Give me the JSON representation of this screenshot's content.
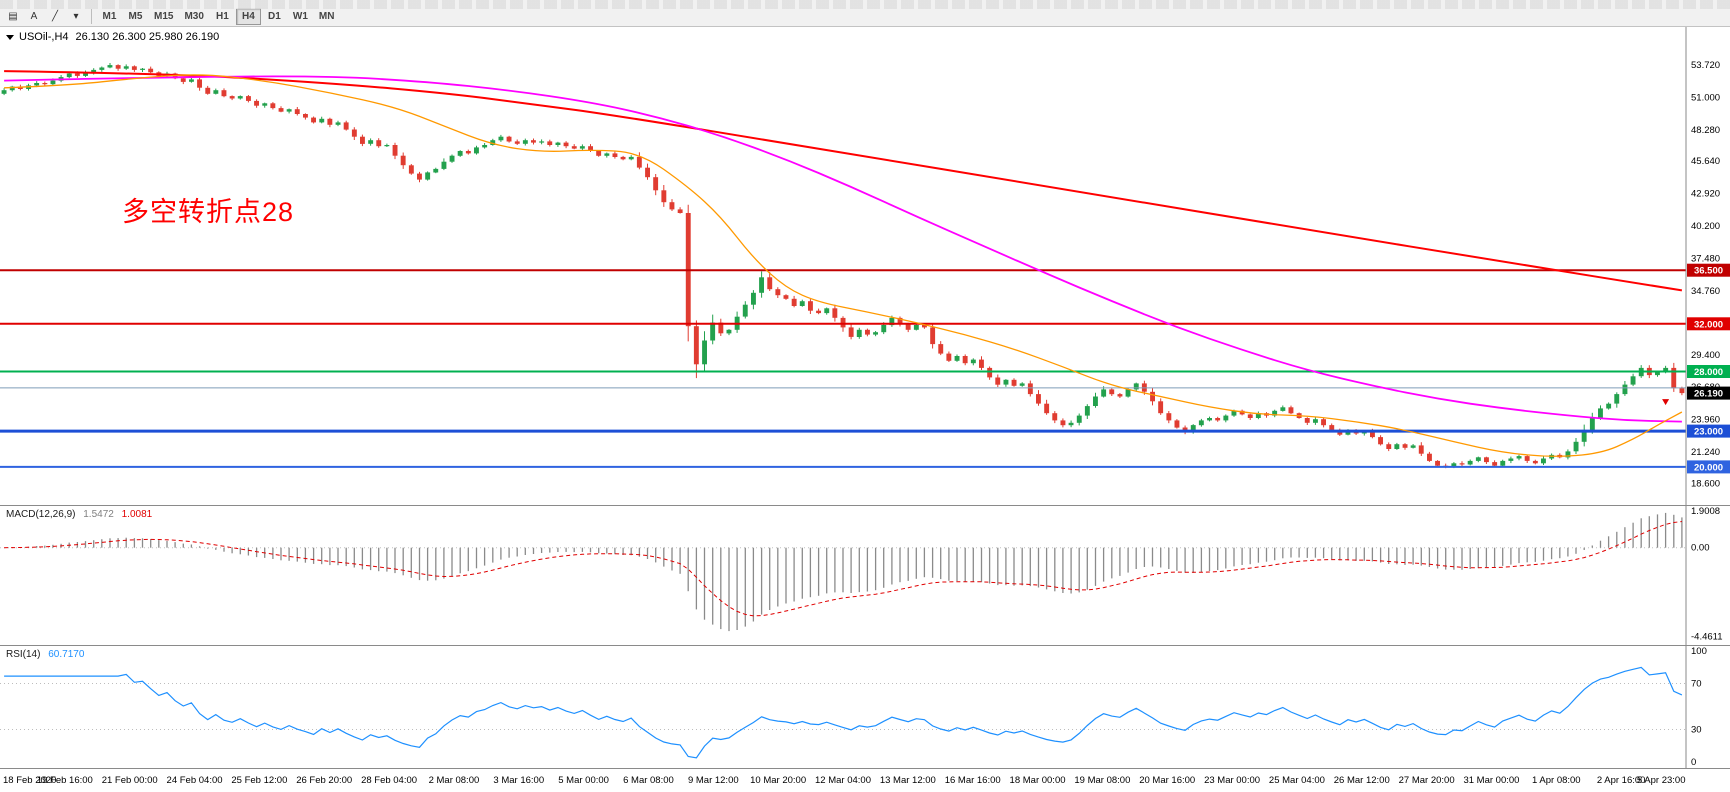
{
  "window": {
    "background": "#ffffff"
  },
  "toolbar": {
    "tools": [
      {
        "name": "chart-templates",
        "glyph": "▤"
      },
      {
        "name": "text-label-tool",
        "glyph": "A"
      },
      {
        "name": "trendline-tool",
        "glyph": "╱"
      },
      {
        "name": "drawing-tools-dropdown",
        "glyph": "▾"
      }
    ],
    "timeframes": [
      {
        "label": "M1",
        "active": false
      },
      {
        "label": "M5",
        "active": false
      },
      {
        "label": "M15",
        "active": false
      },
      {
        "label": "M30",
        "active": false
      },
      {
        "label": "H1",
        "active": false
      },
      {
        "label": "H4",
        "active": true
      },
      {
        "label": "D1",
        "active": false
      },
      {
        "label": "W1",
        "active": false
      },
      {
        "label": "MN",
        "active": false
      }
    ]
  },
  "chart": {
    "title_symbol": "USOil-,H4",
    "title_ohlc": "26.130 26.300 25.980 26.190",
    "annotation": {
      "text": "多空转折点28",
      "color": "#ff0000"
    }
  },
  "chart_data": {
    "type": "candlestick",
    "symbol": "USOil-",
    "timeframe": "H4",
    "ohlc": {
      "open": 26.13,
      "high": 26.3,
      "low": 25.98,
      "close": 26.19
    },
    "price_domain": [
      16.8,
      56.9
    ],
    "y_ticks": [
      "53.720",
      "51.000",
      "48.280",
      "45.640",
      "42.920",
      "40.200",
      "37.480",
      "34.760",
      "29.400",
      "26.680",
      "23.960",
      "21.240",
      "18.600"
    ],
    "x_labels": [
      "18 Feb 2020",
      "19 Feb 16:00",
      "21 Feb 00:00",
      "24 Feb 04:00",
      "25 Feb 12:00",
      "26 Feb 20:00",
      "28 Feb 04:00",
      "2 Mar 08:00",
      "3 Mar 16:00",
      "5 Mar 00:00",
      "6 Mar 08:00",
      "9 Mar 12:00",
      "10 Mar 20:00",
      "12 Mar 04:00",
      "13 Mar 12:00",
      "16 Mar 16:00",
      "18 Mar 00:00",
      "19 Mar 08:00",
      "20 Mar 16:00",
      "23 Mar 00:00",
      "25 Mar 04:00",
      "26 Mar 12:00",
      "27 Mar 20:00",
      "31 Mar 00:00",
      "1 Apr 08:00",
      "2 Apr 16:00",
      "5 Apr 23:00"
    ],
    "closes": [
      51.6,
      51.9,
      51.7,
      52.0,
      52.2,
      52.1,
      52.4,
      52.7,
      53.0,
      52.8,
      53.1,
      53.3,
      53.5,
      53.7,
      53.4,
      53.6,
      53.3,
      53.4,
      53.1,
      52.8,
      53.0,
      52.6,
      52.3,
      52.5,
      51.8,
      51.3,
      51.6,
      51.1,
      50.9,
      51.1,
      50.7,
      50.3,
      50.5,
      50.1,
      49.8,
      50.0,
      49.6,
      49.3,
      48.9,
      49.2,
      48.7,
      48.9,
      48.3,
      47.7,
      47.1,
      47.4,
      46.9,
      47.0,
      46.1,
      45.3,
      44.6,
      44.1,
      44.7,
      45.0,
      45.6,
      46.1,
      46.5,
      46.3,
      46.8,
      47.0,
      47.4,
      47.7,
      47.3,
      47.1,
      47.4,
      47.2,
      47.3,
      47.0,
      47.2,
      46.9,
      46.7,
      46.9,
      46.5,
      46.1,
      46.3,
      46.0,
      45.8,
      46.0,
      45.1,
      44.3,
      43.2,
      42.2,
      41.6,
      41.3,
      31.8,
      28.6,
      30.6,
      32.1,
      31.2,
      31.5,
      32.6,
      33.6,
      34.6,
      35.9,
      34.9,
      34.4,
      34.1,
      33.5,
      33.9,
      33.1,
      32.9,
      33.3,
      32.5,
      31.7,
      30.9,
      31.5,
      31.1,
      31.3,
      31.9,
      32.5,
      32.0,
      31.5,
      31.9,
      31.7,
      30.3,
      29.5,
      28.9,
      29.3,
      28.7,
      29.0,
      28.3,
      27.5,
      26.9,
      27.3,
      26.8,
      27.0,
      26.1,
      25.3,
      24.5,
      23.9,
      23.5,
      23.7,
      24.3,
      25.1,
      25.9,
      26.5,
      26.1,
      25.9,
      26.5,
      27.0,
      26.3,
      25.5,
      24.5,
      23.9,
      23.3,
      22.9,
      23.5,
      23.9,
      24.1,
      23.9,
      24.3,
      24.7,
      24.4,
      24.1,
      24.5,
      24.3,
      24.7,
      25.0,
      24.5,
      24.1,
      23.7,
      24.0,
      23.5,
      23.1,
      22.7,
      23.1,
      22.8,
      23.0,
      22.5,
      21.9,
      21.5,
      21.9,
      21.6,
      21.8,
      21.1,
      20.5,
      20.1,
      20.0,
      20.3,
      20.2,
      20.5,
      20.8,
      20.4,
      20.1,
      20.5,
      20.7,
      20.9,
      20.5,
      20.3,
      20.7,
      21.0,
      20.8,
      21.3,
      22.1,
      23.1,
      24.1,
      24.9,
      25.3,
      26.1,
      26.9,
      27.6,
      28.3,
      27.7,
      28.0,
      28.3,
      26.6,
      26.19
    ],
    "candle_colors": {
      "up": "#23a14d",
      "down": "#e03c31"
    },
    "levels": [
      {
        "value": 36.5,
        "label": "36.500",
        "color": "#c00000",
        "width": 2
      },
      {
        "value": 32.0,
        "label": "32.000",
        "color": "#e00000",
        "width": 2
      },
      {
        "value": 28.0,
        "label": "28.000",
        "color": "#00b050",
        "width": 2
      },
      {
        "value": 26.62,
        "label": "",
        "color": "#7f9db9",
        "width": 1
      },
      {
        "value": 23.0,
        "label": "23.000",
        "color": "#1c4fd6",
        "width": 3
      },
      {
        "value": 20.0,
        "label": "20.000",
        "color": "#2f63e0",
        "width": 2
      }
    ],
    "current_price": {
      "value": 26.19,
      "label": "26.190",
      "bg": "#000000",
      "fg": "#ffffff"
    },
    "moving_averages": [
      {
        "name": "ma-slow-red",
        "color": "#ff0000",
        "width": 2,
        "points": [
          [
            0,
            53.2
          ],
          [
            20,
            53.0
          ],
          [
            40,
            52.2
          ],
          [
            55,
            51.3
          ],
          [
            65,
            50.4
          ],
          [
            74,
            49.6
          ],
          [
            100,
            46.7
          ],
          [
            130,
            43.3
          ],
          [
            160,
            39.9
          ],
          [
            185,
            37.1
          ],
          [
            206,
            34.8
          ]
        ]
      },
      {
        "name": "ma-medium-magenta",
        "color": "#ff00ff",
        "width": 1.8,
        "points": [
          [
            0,
            52.4
          ],
          [
            20,
            52.7
          ],
          [
            40,
            52.8
          ],
          [
            52,
            52.3
          ],
          [
            62,
            51.6
          ],
          [
            72,
            50.6
          ],
          [
            80,
            49.4
          ],
          [
            88,
            47.8
          ],
          [
            96,
            45.8
          ],
          [
            104,
            43.5
          ],
          [
            112,
            41.0
          ],
          [
            120,
            38.6
          ],
          [
            128,
            36.2
          ],
          [
            136,
            33.9
          ],
          [
            144,
            31.7
          ],
          [
            152,
            29.8
          ],
          [
            160,
            28.1
          ],
          [
            168,
            26.8
          ],
          [
            176,
            25.7
          ],
          [
            184,
            24.9
          ],
          [
            192,
            24.3
          ],
          [
            199,
            23.9
          ],
          [
            206,
            23.8
          ]
        ]
      },
      {
        "name": "ma-fast-orange",
        "color": "#ff9900",
        "width": 1.3,
        "points": [
          [
            0,
            51.8
          ],
          [
            8,
            52.0
          ],
          [
            16,
            52.6
          ],
          [
            24,
            53.0
          ],
          [
            32,
            52.4
          ],
          [
            40,
            51.4
          ],
          [
            48,
            50.2
          ],
          [
            54,
            48.6
          ],
          [
            60,
            47.0
          ],
          [
            66,
            46.4
          ],
          [
            72,
            46.6
          ],
          [
            78,
            46.4
          ],
          [
            84,
            43.5
          ],
          [
            88,
            41.0
          ],
          [
            92,
            37.5
          ],
          [
            96,
            35.0
          ],
          [
            100,
            33.8
          ],
          [
            106,
            33.0
          ],
          [
            112,
            32.1
          ],
          [
            118,
            31.1
          ],
          [
            124,
            29.9
          ],
          [
            130,
            28.4
          ],
          [
            136,
            26.8
          ],
          [
            142,
            25.9
          ],
          [
            148,
            25.0
          ],
          [
            154,
            24.4
          ],
          [
            160,
            24.3
          ],
          [
            166,
            23.8
          ],
          [
            172,
            23.1
          ],
          [
            178,
            22.1
          ],
          [
            184,
            21.2
          ],
          [
            190,
            20.8
          ],
          [
            196,
            21.1
          ],
          [
            200,
            22.3
          ],
          [
            203,
            23.5
          ],
          [
            206,
            24.6
          ]
        ]
      }
    ],
    "sell_marker": {
      "bar": 204,
      "price": 25.35,
      "color": "#e00000"
    },
    "macd": {
      "label": "MACD(12,26,9)",
      "value_main": "1.5472",
      "value_signal": "1.0081",
      "fast": 12,
      "slow": 26,
      "signal": 9,
      "y_domain": [
        -4.9,
        2.15
      ],
      "y_ticks": [
        {
          "v": 1.9008,
          "label": "1.9008"
        },
        {
          "v": 0,
          "label": "0.00"
        },
        {
          "v": -4.4611,
          "label": "-4.4611"
        }
      ],
      "hist_color": "#8a8a8a",
      "signal_color": "#e00000"
    },
    "rsi": {
      "label": "RSI(14)",
      "value_text": "60.7170",
      "period": 14,
      "levels": [
        70,
        30
      ],
      "y_ticks": [
        {
          "v": 100,
          "label": "100"
        },
        {
          "v": 70,
          "label": "70"
        },
        {
          "v": 30,
          "label": "30"
        },
        {
          "v": 0,
          "label": "0"
        }
      ],
      "line_color": "#1e90ff"
    }
  }
}
